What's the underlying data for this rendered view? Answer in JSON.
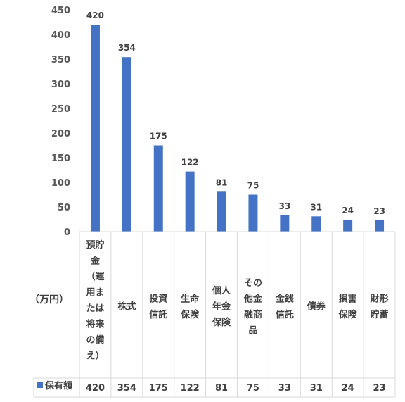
{
  "chart_data": {
    "type": "bar",
    "ylabel": "（万円）",
    "ylim": [
      0,
      450
    ],
    "yticks": [
      0,
      50,
      100,
      150,
      200,
      250,
      300,
      350,
      400,
      450
    ],
    "categories": [
      "預貯金（運用または将来の備え）",
      "株式",
      "投資信託",
      "生命保険",
      "個人年金保険",
      "その他金融商品",
      "金銭信託",
      "債券",
      "損害保険",
      "財形貯蓄"
    ],
    "category_lines": [
      [
        "預貯",
        "金",
        "（運",
        "用ま",
        "たは",
        "将来",
        "の備",
        "え）"
      ],
      [
        "株式"
      ],
      [
        "投資",
        "信託"
      ],
      [
        "生命",
        "保険"
      ],
      [
        "個人",
        "年金",
        "保険"
      ],
      [
        "その",
        "他金",
        "融商",
        "品"
      ],
      [
        "金銭",
        "信託"
      ],
      [
        "債券"
      ],
      [
        "損害",
        "保険"
      ],
      [
        "財形",
        "貯蓄"
      ]
    ],
    "series": [
      {
        "name": "保有額",
        "values": [
          420,
          354,
          175,
          122,
          81,
          75,
          33,
          31,
          24,
          23
        ]
      }
    ],
    "grid": false,
    "legend": "data-table",
    "data_table": true
  },
  "colors": {
    "bar": "#4472C4",
    "border": "#d9d9d9"
  }
}
